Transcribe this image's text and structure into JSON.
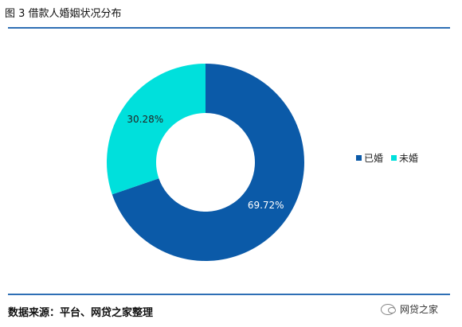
{
  "figure": {
    "title": "图 3 借款人婚姻状况分布"
  },
  "chart_data": {
    "type": "pie",
    "donut": true,
    "series": [
      {
        "name": "已婚",
        "value": 69.72,
        "label": "69.72%",
        "color": "#0b5aa8"
      },
      {
        "name": "未婚",
        "value": 30.28,
        "label": "30.28%",
        "color": "#00e0dc"
      }
    ],
    "legend": "right",
    "start": "top, clockwise"
  },
  "footer": {
    "source": "数据来源：平台、网贷之家整理",
    "watermark": "网贷之家",
    "watermark_icon": "wechat-icon"
  }
}
